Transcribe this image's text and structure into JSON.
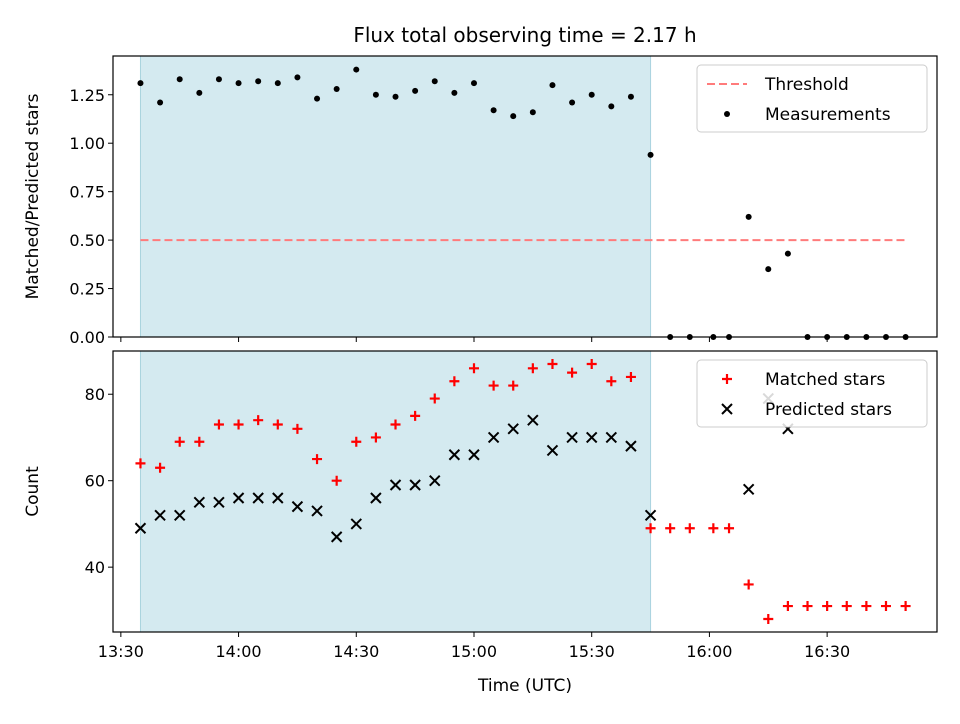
{
  "chart_data": [
    {
      "type": "scatter",
      "title": "Flux total observing time = 2.17 h",
      "xlabel": "",
      "ylabel": "Matched/Predicted stars",
      "xlim": [
        "13:28",
        "16:58"
      ],
      "ylim": [
        0,
        1.45
      ],
      "yticks": [
        "0.00",
        "0.25",
        "0.50",
        "0.75",
        "1.00",
        "1.25"
      ],
      "shaded_region": {
        "x_start": "13:35",
        "x_end": "15:45",
        "color": "#d4eaf0"
      },
      "legend": {
        "position": "top-right",
        "entries": [
          "Threshold",
          "Measurements"
        ]
      },
      "threshold": {
        "name": "Threshold",
        "value": 0.5,
        "x_start": "13:35",
        "x_end": "16:50",
        "color": "#ff7b7b"
      },
      "series": [
        {
          "name": "Measurements",
          "color": "#000000",
          "x": [
            "13:35",
            "13:40",
            "13:45",
            "13:50",
            "13:55",
            "14:00",
            "14:05",
            "14:10",
            "14:15",
            "14:20",
            "14:25",
            "14:30",
            "14:35",
            "14:40",
            "14:45",
            "14:50",
            "14:55",
            "15:00",
            "15:05",
            "15:10",
            "15:15",
            "15:20",
            "15:25",
            "15:30",
            "15:35",
            "15:40",
            "15:45",
            "15:50",
            "15:55",
            "16:01",
            "16:05",
            "16:10",
            "16:15",
            "16:20",
            "16:25",
            "16:30",
            "16:35",
            "16:40",
            "16:45",
            "16:50"
          ],
          "y": [
            1.31,
            1.21,
            1.33,
            1.26,
            1.33,
            1.31,
            1.32,
            1.31,
            1.34,
            1.23,
            1.28,
            1.38,
            1.25,
            1.24,
            1.27,
            1.32,
            1.26,
            1.31,
            1.17,
            1.14,
            1.16,
            1.3,
            1.21,
            1.25,
            1.19,
            1.24,
            0.94,
            0,
            0,
            0,
            0,
            0.62,
            0.35,
            0.43,
            0,
            0,
            0,
            0,
            0,
            0
          ]
        }
      ]
    },
    {
      "type": "scatter",
      "title": "",
      "xlabel": "Time (UTC)",
      "ylabel": "Count",
      "xlim": [
        "13:28",
        "16:58"
      ],
      "xticks": [
        "13:30",
        "14:00",
        "14:30",
        "15:00",
        "15:30",
        "16:00",
        "16:30"
      ],
      "ylim": [
        25,
        90
      ],
      "yticks": [
        "40",
        "60",
        "80"
      ],
      "shaded_region": {
        "x_start": "13:35",
        "x_end": "15:45",
        "color": "#d4eaf0"
      },
      "legend": {
        "position": "top-right",
        "entries": [
          "Matched stars",
          "Predicted stars"
        ]
      },
      "series": [
        {
          "name": "Matched stars",
          "marker": "plus",
          "color": "#ff0000",
          "x": [
            "13:35",
            "13:40",
            "13:45",
            "13:50",
            "13:55",
            "14:00",
            "14:05",
            "14:10",
            "14:15",
            "14:20",
            "14:25",
            "14:30",
            "14:35",
            "14:40",
            "14:45",
            "14:50",
            "14:55",
            "15:00",
            "15:05",
            "15:10",
            "15:15",
            "15:20",
            "15:25",
            "15:30",
            "15:35",
            "15:40",
            "15:45",
            "15:50",
            "15:55",
            "16:01",
            "16:05",
            "16:10",
            "16:15",
            "16:20",
            "16:25",
            "16:30",
            "16:35",
            "16:40",
            "16:45",
            "16:50"
          ],
          "y": [
            64,
            63,
            69,
            69,
            73,
            73,
            74,
            73,
            72,
            65,
            60,
            69,
            70,
            73,
            75,
            79,
            83,
            86,
            82,
            82,
            86,
            87,
            85,
            87,
            83,
            84,
            49,
            49,
            49,
            49,
            49,
            36,
            28,
            31,
            31,
            31,
            31,
            31,
            31,
            31
          ]
        },
        {
          "name": "Predicted stars",
          "marker": "x",
          "color": "#000000",
          "x": [
            "13:35",
            "13:40",
            "13:45",
            "13:50",
            "13:55",
            "14:00",
            "14:05",
            "14:10",
            "14:15",
            "14:20",
            "14:25",
            "14:30",
            "14:35",
            "14:40",
            "14:45",
            "14:50",
            "14:55",
            "15:00",
            "15:05",
            "15:10",
            "15:15",
            "15:20",
            "15:25",
            "15:30",
            "15:35",
            "15:40",
            "15:45",
            "16:10",
            "16:15",
            "16:20"
          ],
          "y": [
            49,
            52,
            52,
            55,
            55,
            56,
            56,
            56,
            54,
            53,
            47,
            50,
            56,
            59,
            59,
            60,
            66,
            66,
            70,
            72,
            74,
            67,
            70,
            70,
            70,
            68,
            52,
            58,
            79,
            72
          ]
        }
      ]
    }
  ]
}
